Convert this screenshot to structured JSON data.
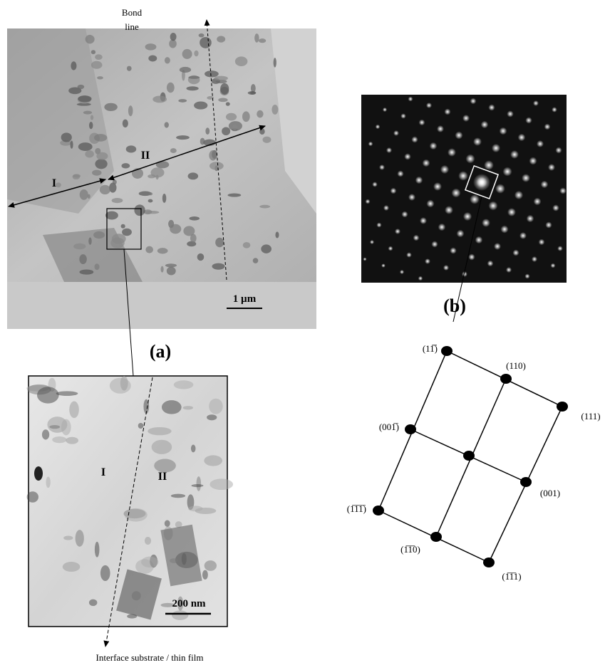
{
  "panel_a": {
    "label": "(a)",
    "annotation": [
      "Bond",
      "line"
    ],
    "regions": [
      "I",
      "II"
    ],
    "scale_bar": "1 µm"
  },
  "inset": {
    "regions": [
      "I",
      "II"
    ],
    "scale_bar": "200 nm",
    "annotation": "Interface substrate / thin film"
  },
  "panel_b": {
    "label": "(b)",
    "spots": [
      "(11̅̅)",
      "(110)",
      "(111)",
      "(001̅)",
      "(001)",
      "(1̅1̅1̅)",
      "(1̅1̅0)",
      "(1̅1̅1)"
    ]
  }
}
